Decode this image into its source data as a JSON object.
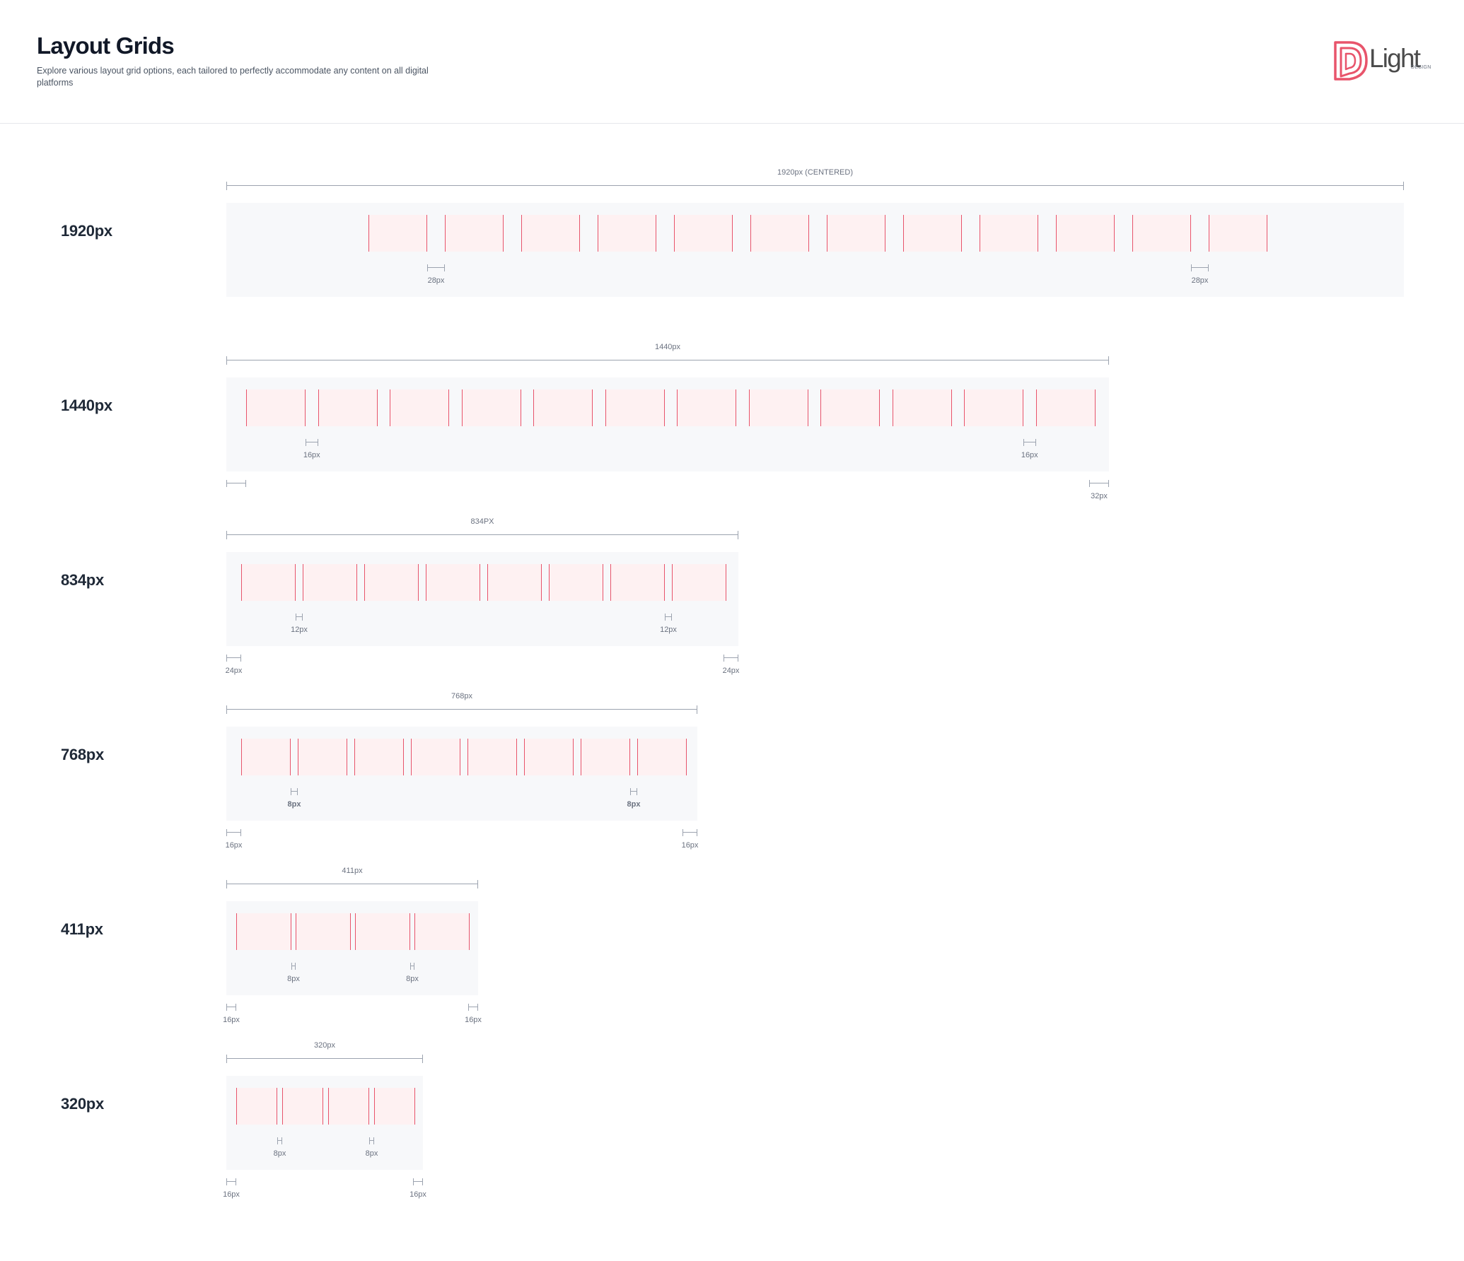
{
  "header": {
    "title": "Layout Grids",
    "subtitle": "Explore various layout grid options, each tailored to perfectly accommodate any content on all digital platforms",
    "logo_text": "Light",
    "logo_subtext": "DESIGN"
  },
  "grids": [
    {
      "label": "1920px",
      "width_label": "1920px (CENTERED)",
      "columns": 12,
      "gutter_label": "28px",
      "gutter_label_bold": false,
      "margin_label_left": "",
      "margin_label_right": ""
    },
    {
      "label": "1440px",
      "width_label": "1440px",
      "columns": 12,
      "gutter_label": "16px",
      "gutter_label_bold": false,
      "margin_label_left": "",
      "margin_label_right": "32px"
    },
    {
      "label": "834px",
      "width_label": "834PX",
      "columns": 8,
      "gutter_label": "12px",
      "gutter_label_bold": false,
      "margin_label_left": "24px",
      "margin_label_right": "24px"
    },
    {
      "label": "768px",
      "width_label": "768px",
      "columns": 8,
      "gutter_label": "8px",
      "gutter_label_bold": true,
      "margin_label_left": "16px",
      "margin_label_right": "16px"
    },
    {
      "label": "411px",
      "width_label": "411px",
      "columns": 4,
      "gutter_label": "8px",
      "gutter_label_bold": false,
      "margin_label_left": "16px",
      "margin_label_right": "16px"
    },
    {
      "label": "320px",
      "width_label": "320px",
      "columns": 4,
      "gutter_label": "8px",
      "gutter_label_bold": false,
      "margin_label_left": "16px",
      "margin_label_right": "16px"
    }
  ],
  "colors": {
    "column_stroke": "#e8546b",
    "column_fill": "#fef1f2",
    "grid_background": "#f7f8fa",
    "measure_line": "#9ca3af",
    "logo_mark": "#e8546b"
  },
  "icons": [
    "logo-mark-icon"
  ]
}
